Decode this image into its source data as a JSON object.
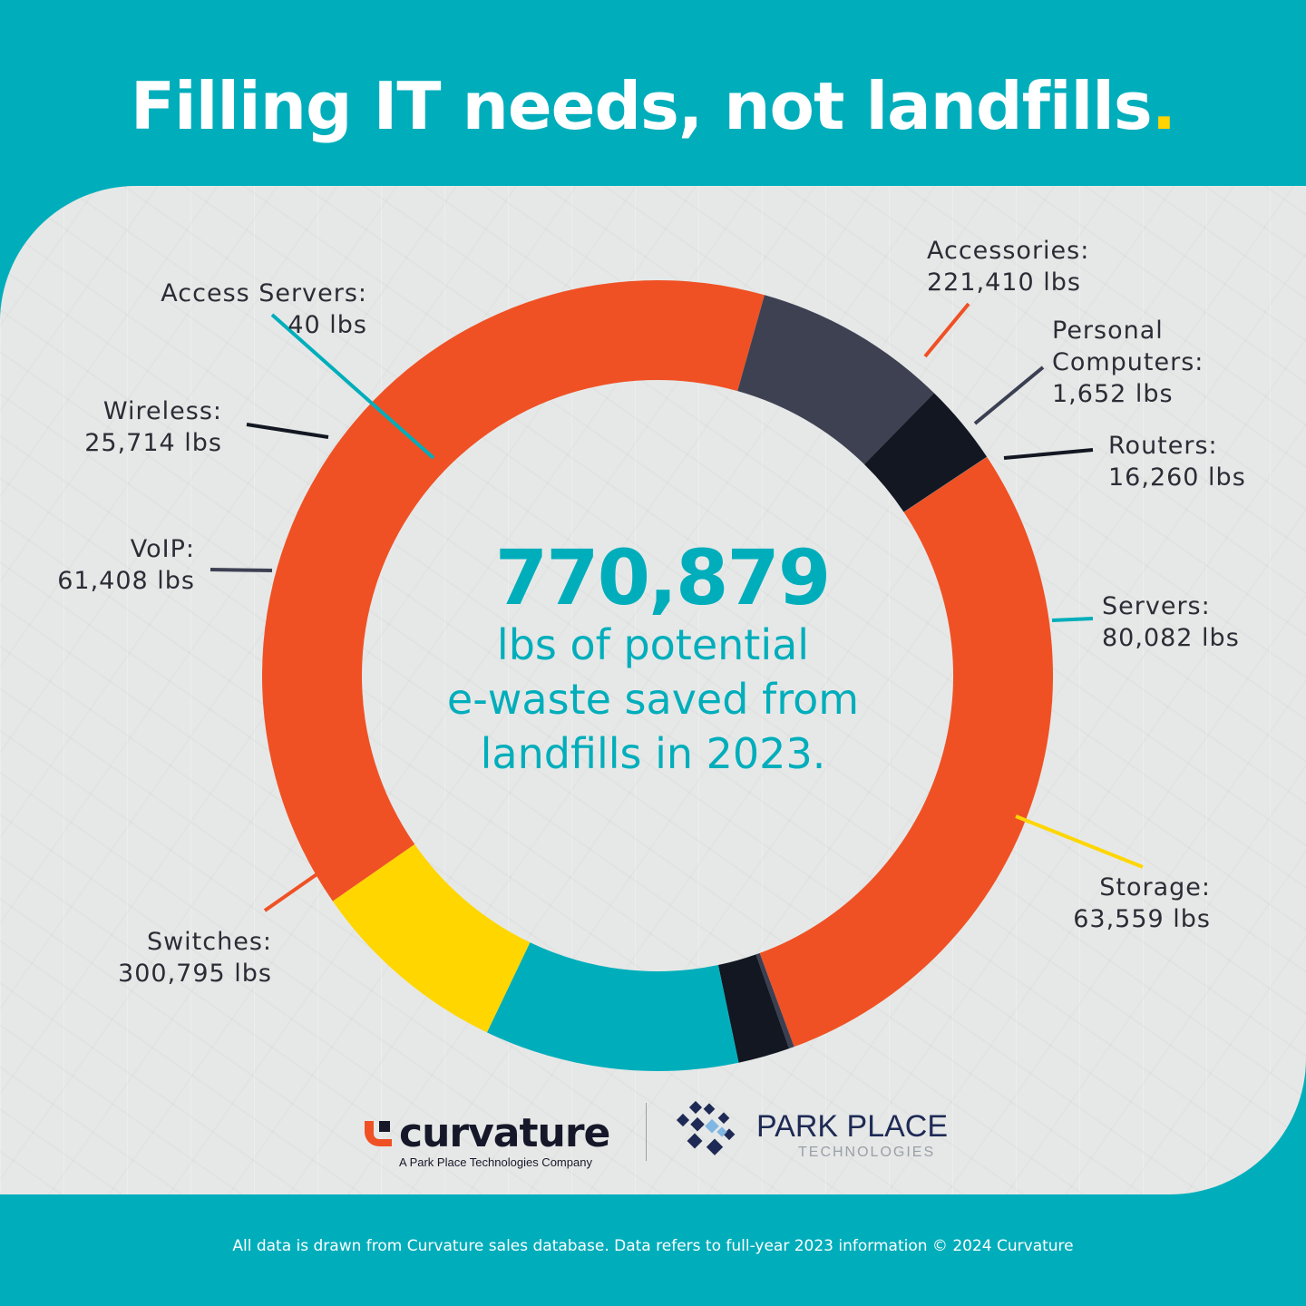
{
  "headline": {
    "text": "Filling IT needs, not landfills",
    "dot": "."
  },
  "chart_data": {
    "type": "pie",
    "donut": true,
    "unit": "lbs",
    "center": {
      "value": "770,879",
      "caption": [
        "lbs of potential",
        "e-waste saved from",
        "landfills in 2023."
      ]
    },
    "slices": [
      {
        "name": "Accessories",
        "value": 221410,
        "display": "221,410 lbs",
        "color": "#ef5125"
      },
      {
        "name": "Personal Computers",
        "value": 1652,
        "display": "1,652 lbs",
        "color": "#3b3f52"
      },
      {
        "name": "Routers",
        "value": 16260,
        "display": "16,260 lbs",
        "color": "#121722"
      },
      {
        "name": "Servers",
        "value": 80082,
        "display": "80,082 lbs",
        "color": "#00aebb"
      },
      {
        "name": "Storage",
        "value": 63559,
        "display": "63,559 lbs",
        "color": "#ffd600"
      },
      {
        "name": "Switches",
        "value": 300795,
        "display": "300,795 lbs",
        "color": "#ef5125"
      },
      {
        "name": "VoIP",
        "value": 61408,
        "display": "61,408 lbs",
        "color": "#3d4152"
      },
      {
        "name": "Wireless",
        "value": 25714,
        "display": "25,714 lbs",
        "color": "#121722"
      },
      {
        "name": "Access Servers",
        "value": 40,
        "display": "40 lbs",
        "color": "#00aebb"
      }
    ],
    "labels": [
      {
        "lines": [
          "Accessories:",
          "221,410 lbs"
        ]
      },
      {
        "lines": [
          "Personal",
          "Computers:",
          "1,652 lbs"
        ]
      },
      {
        "lines": [
          "Routers:",
          "16,260 lbs"
        ]
      },
      {
        "lines": [
          "Servers:",
          "80,082 lbs"
        ]
      },
      {
        "lines": [
          "Storage:",
          "63,559 lbs"
        ]
      },
      {
        "lines": [
          "Switches:",
          "300,795 lbs"
        ]
      },
      {
        "lines": [
          "VoIP:",
          "61,408 lbs"
        ]
      },
      {
        "lines": [
          "Wireless:",
          "25,714 lbs"
        ]
      },
      {
        "lines": [
          "Access Servers:",
          "40 lbs"
        ]
      }
    ]
  },
  "logos": {
    "curvature": {
      "name": "curvature",
      "tagline": "A Park Place Technologies Company"
    },
    "park_place": {
      "name": "PARK PLACE",
      "sub": "TECHNOLOGIES"
    }
  },
  "footer": {
    "text": "All data is drawn from Curvature sales database. Data refers to full-year 2023 information © 2024 Curvature"
  }
}
